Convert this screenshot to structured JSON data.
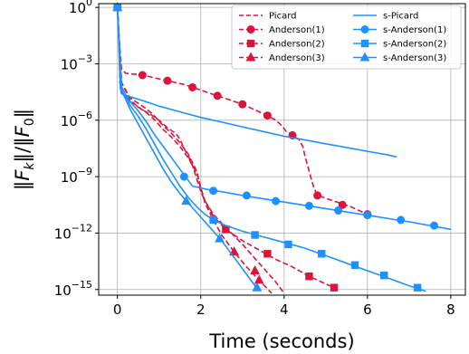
{
  "chart_data": {
    "type": "line",
    "xlabel": "Time (seconds)",
    "ylabel": "‖F_k‖/‖F_0‖",
    "xlim": [
      -0.45,
      8.35
    ],
    "ylim_log10": [
      -15.3,
      0.2
    ],
    "y_scale": "log",
    "x_ticks": [
      0,
      2,
      4,
      6,
      8
    ],
    "x_tick_labels": [
      "0",
      "2",
      "4",
      "6",
      "8"
    ],
    "y_ticks": [
      0,
      -3,
      -6,
      -9,
      -12,
      -15
    ],
    "y_tick_labels": [
      {
        "base": "10",
        "exp": "0"
      },
      {
        "base": "10",
        "exp": "−3"
      },
      {
        "base": "10",
        "exp": "−6"
      },
      {
        "base": "10",
        "exp": "−9"
      },
      {
        "base": "10",
        "exp": "−12"
      },
      {
        "base": "10",
        "exp": "−15"
      }
    ],
    "grid": true,
    "legend": {
      "placement": "top-right",
      "columns": 2
    },
    "colors": {
      "red": "#dc143c",
      "blue": "#1e90ff"
    },
    "series": [
      {
        "name": "Picard",
        "color": "#dc143c",
        "dash": true,
        "marker": "none",
        "x": [
          0,
          0.04,
          0.06,
          0.1,
          0.3,
          0.5,
          0.8,
          1.0,
          1.2,
          1.4,
          1.5,
          1.6,
          1.7,
          1.8,
          1.9,
          2.0,
          2.1,
          2.3,
          2.6,
          3.0,
          3.4,
          3.8,
          4.0
        ],
        "logy": [
          0,
          -2.2,
          -4.0,
          -4.6,
          -5.0,
          -5.3,
          -5.7,
          -6.0,
          -6.4,
          -6.7,
          -7.0,
          -7.5,
          -7.9,
          -8.4,
          -9.1,
          -9.8,
          -10.3,
          -11.0,
          -11.7,
          -12.6,
          -13.6,
          -14.6,
          -15.2
        ]
      },
      {
        "name": "Anderson(1)",
        "color": "#dc143c",
        "dash": true,
        "marker": "circle",
        "x": [
          0,
          0.05,
          0.1,
          0.2,
          0.6,
          0.8,
          1.0,
          1.2,
          1.4,
          1.6,
          1.8,
          2.0,
          2.2,
          2.4,
          2.6,
          2.8,
          3.0,
          3.2,
          3.4,
          3.6,
          3.8,
          3.95,
          4.05,
          4.15,
          4.25,
          4.35,
          4.45,
          4.5,
          4.6,
          4.7,
          4.8,
          5.2,
          5.6,
          6.0
        ],
        "logy": [
          0,
          -2.0,
          -3.3,
          -3.5,
          -3.6,
          -3.7,
          -3.8,
          -3.9,
          -4.0,
          -4.1,
          -4.25,
          -4.4,
          -4.55,
          -4.7,
          -4.85,
          -5.0,
          -5.15,
          -5.35,
          -5.55,
          -5.75,
          -6.0,
          -6.3,
          -6.6,
          -6.7,
          -6.9,
          -7.0,
          -7.4,
          -7.9,
          -8.7,
          -9.5,
          -10.0,
          -10.3,
          -10.6,
          -11.0
        ],
        "markers_x": [
          0,
          0.6,
          1.2,
          1.8,
          2.4,
          3.0,
          3.6,
          4.2,
          4.8,
          5.4,
          6.0
        ],
        "markers_logy": [
          0,
          -3.6,
          -3.9,
          -4.25,
          -4.7,
          -5.15,
          -5.75,
          -6.8,
          -10.0,
          -10.5,
          -11.0
        ]
      },
      {
        "name": "Anderson(2)",
        "color": "#dc143c",
        "dash": true,
        "marker": "square",
        "x": [
          0,
          0.05,
          0.1,
          0.3,
          0.5,
          0.7,
          0.9,
          1.1,
          1.3,
          1.5,
          1.7,
          1.9,
          2.0,
          2.1,
          2.3,
          2.6,
          3.0,
          3.4,
          3.8,
          4.2,
          4.6,
          5.2
        ],
        "logy": [
          0,
          -2.0,
          -4.0,
          -4.8,
          -5.1,
          -5.4,
          -5.8,
          -6.3,
          -6.7,
          -7.2,
          -7.8,
          -8.7,
          -9.6,
          -10.3,
          -11.1,
          -11.8,
          -12.4,
          -12.9,
          -13.4,
          -13.8,
          -14.3,
          -14.9
        ],
        "markers_x": [
          0,
          2.6,
          3.6,
          4.6,
          5.2
        ],
        "markers_logy": [
          0,
          -11.8,
          -13.1,
          -14.3,
          -14.9
        ]
      },
      {
        "name": "Anderson(3)",
        "color": "#dc143c",
        "dash": true,
        "marker": "triangle",
        "x": [
          0,
          0.05,
          0.1,
          0.3,
          0.5,
          0.7,
          0.9,
          1.1,
          1.3,
          1.5,
          1.7,
          1.9,
          2.0,
          2.1,
          2.3,
          2.5,
          2.8,
          3.1,
          3.4,
          3.7
        ],
        "logy": [
          0,
          -2.0,
          -4.0,
          -4.9,
          -5.3,
          -5.6,
          -6.0,
          -6.5,
          -6.9,
          -7.4,
          -8.0,
          -8.8,
          -9.6,
          -10.4,
          -11.3,
          -12.1,
          -13.0,
          -13.8,
          -14.5,
          -15.2
        ],
        "markers_x": [
          0,
          2.8,
          3.3,
          3.4
        ],
        "markers_logy": [
          0,
          -13.0,
          -14.0,
          -14.5
        ]
      },
      {
        "name": "s-Picard",
        "color": "#1e90ff",
        "dash": false,
        "marker": "none",
        "x": [
          0,
          0.04,
          0.07,
          0.1,
          0.3,
          0.6,
          1.0,
          1.5,
          2.0,
          2.5,
          3.0,
          3.5,
          4.0,
          4.5,
          5.0,
          5.5,
          6.0,
          6.5,
          6.7
        ],
        "logy": [
          0,
          -2.5,
          -4.3,
          -4.6,
          -4.75,
          -4.95,
          -5.25,
          -5.55,
          -5.85,
          -6.1,
          -6.35,
          -6.6,
          -6.85,
          -7.05,
          -7.25,
          -7.45,
          -7.65,
          -7.85,
          -7.95
        ]
      },
      {
        "name": "s-Anderson(1)",
        "color": "#1e90ff",
        "dash": false,
        "marker": "circle",
        "x": [
          0,
          0.05,
          0.1,
          0.3,
          0.5,
          0.7,
          0.9,
          1.1,
          1.3,
          1.5,
          1.7,
          1.8,
          2.0,
          2.2,
          2.5,
          3.0,
          4.0,
          5.0,
          6.0,
          7.0,
          8.0
        ],
        "logy": [
          0,
          -2.2,
          -4.3,
          -5.0,
          -5.5,
          -6.1,
          -6.8,
          -7.4,
          -8.0,
          -8.6,
          -9.2,
          -9.5,
          -9.6,
          -9.7,
          -9.8,
          -10.0,
          -10.35,
          -10.7,
          -11.05,
          -11.4,
          -11.8
        ],
        "markers_x": [
          0,
          1.6,
          2.3,
          3.1,
          3.8,
          4.6,
          5.3,
          6.0,
          6.8,
          7.6
        ],
        "markers_logy": [
          0,
          -9.0,
          -9.75,
          -10.0,
          -10.3,
          -10.55,
          -10.8,
          -11.05,
          -11.3,
          -11.6
        ]
      },
      {
        "name": "s-Anderson(2)",
        "color": "#1e90ff",
        "dash": false,
        "marker": "square",
        "x": [
          0,
          0.05,
          0.1,
          0.3,
          0.5,
          0.7,
          0.9,
          1.1,
          1.3,
          1.5,
          1.7,
          1.9,
          2.1,
          2.3,
          2.6,
          3.0,
          3.5,
          4.0,
          4.5,
          5.0,
          5.5,
          6.0,
          6.5,
          7.0,
          7.4
        ],
        "logy": [
          0,
          -2.2,
          -4.2,
          -5.2,
          -5.8,
          -6.5,
          -7.3,
          -8.1,
          -8.8,
          -9.5,
          -10.1,
          -10.6,
          -11.0,
          -11.3,
          -11.6,
          -11.9,
          -12.2,
          -12.5,
          -12.8,
          -13.2,
          -13.6,
          -14.0,
          -14.4,
          -14.8,
          -15.1
        ],
        "markers_x": [
          0,
          2.3,
          3.3,
          4.1,
          4.9,
          5.7,
          6.4,
          7.2
        ],
        "markers_logy": [
          0,
          -11.3,
          -12.1,
          -12.6,
          -13.1,
          -13.7,
          -14.25,
          -14.9
        ]
      },
      {
        "name": "s-Anderson(3)",
        "color": "#1e90ff",
        "dash": false,
        "marker": "triangle",
        "x": [
          0,
          0.05,
          0.1,
          0.3,
          0.5,
          0.7,
          0.9,
          1.1,
          1.3,
          1.5,
          1.7,
          1.9,
          2.1,
          2.3,
          2.5,
          2.7,
          2.9,
          3.1,
          3.3,
          3.4
        ],
        "logy": [
          0,
          -2.2,
          -4.4,
          -5.4,
          -6.2,
          -7.0,
          -7.8,
          -8.6,
          -9.3,
          -9.9,
          -10.4,
          -10.9,
          -11.4,
          -11.9,
          -12.4,
          -13.0,
          -13.6,
          -14.2,
          -14.8,
          -15.0
        ],
        "markers_x": [
          0,
          1.65,
          2.45,
          3.35
        ],
        "markers_logy": [
          0,
          -10.3,
          -12.3,
          -14.9
        ]
      }
    ]
  }
}
